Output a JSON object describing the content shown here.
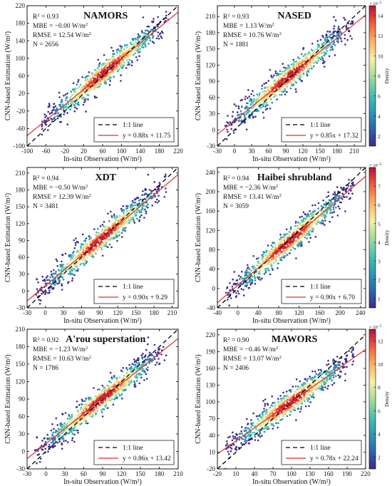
{
  "common": {
    "xlabel": "In-situ Observation (W/m²)",
    "ylabel": "CNN-based Estimation (W/m²)",
    "legend_line1": "1:1 line",
    "colorbar_label": "Density",
    "colorbar_exp": "× 10",
    "colorbar_exp_sup": "−5"
  },
  "chart_data": [
    {
      "type": "scatter",
      "title": "NAMORS",
      "xlim": [
        -100,
        220
      ],
      "ylim": [
        -100,
        220
      ],
      "xticks": [
        "-100",
        "-60",
        "-20",
        "20",
        "60",
        "100",
        "140",
        "180",
        "220"
      ],
      "yticks": [
        "-100",
        "-60",
        "-20",
        "20",
        "60",
        "100",
        "140",
        "180",
        "220"
      ],
      "stats": {
        "r2": "0.93",
        "mbe": "−0.00 W/m",
        "rmse": "12.54 W/m",
        "n": "2656"
      },
      "fit": {
        "slope": 0.88,
        "intercept": 11.75,
        "label": "y = 0.88x + 11.75"
      },
      "point_range": [
        -70,
        200
      ],
      "colorbar": {
        "ticks": [
          "2",
          "4",
          "6",
          "8",
          "10",
          "12",
          "14"
        ],
        "max": 15,
        "min": 1
      }
    },
    {
      "type": "scatter",
      "title": "NASED",
      "xlim": [
        -30,
        230
      ],
      "ylim": [
        -30,
        230
      ],
      "xticks": [
        "-30",
        "0",
        "30",
        "60",
        "90",
        "120",
        "150",
        "180",
        "210"
      ],
      "yticks": [
        "-30",
        "0",
        "30",
        "60",
        "90",
        "120",
        "150",
        "180",
        "210"
      ],
      "stats": {
        "r2": "0.93",
        "mbe": "1.13 W/m",
        "rmse": "10.76 W/m",
        "n": "1881"
      },
      "fit": {
        "slope": 0.85,
        "intercept": 17.32,
        "label": "y = 0.85x + 17.32"
      }
    },
    {
      "type": "scatter",
      "title": "XDT",
      "xlim": [
        -30,
        220
      ],
      "ylim": [
        -30,
        220
      ],
      "xticks": [
        "-30",
        "0",
        "30",
        "60",
        "90",
        "120",
        "150",
        "180",
        "210"
      ],
      "yticks": [
        "-30",
        "0",
        "30",
        "60",
        "90",
        "120",
        "150",
        "180",
        "210"
      ],
      "stats": {
        "r2": "0.94",
        "mbe": "−0.50 W/m",
        "rmse": "12.39 W/m",
        "n": "3481"
      },
      "fit": {
        "slope": 0.9,
        "intercept": 9.29,
        "label": "y = 0.90x + 9.29"
      }
    },
    {
      "type": "scatter",
      "title": "Haibei shrubland",
      "xlim": [
        -40,
        250
      ],
      "ylim": [
        -40,
        250
      ],
      "xticks": [
        "-40",
        "0",
        "40",
        "80",
        "120",
        "160",
        "200",
        "240"
      ],
      "yticks": [
        "-40",
        "0",
        "40",
        "80",
        "120",
        "160",
        "200",
        "240"
      ],
      "stats": {
        "r2": "0.94",
        "mbe": "−2.36 W/m",
        "rmse": "13.41 W/m",
        "n": "3059"
      },
      "fit": {
        "slope": 0.9,
        "intercept": 6.7,
        "label": "y = 0.90x + 6.70"
      },
      "colorbar": {
        "ticks": [
          "1",
          "2",
          "3",
          "4",
          "5",
          "6",
          "7"
        ],
        "max": 8,
        "min": 0.5
      }
    },
    {
      "type": "scatter",
      "title": "A'rou superstation",
      "xlim": [
        -30,
        210
      ],
      "ylim": [
        -30,
        210
      ],
      "xticks": [
        "-30",
        "0",
        "30",
        "60",
        "90",
        "120",
        "150",
        "180",
        "210"
      ],
      "yticks": [
        "-30",
        "0",
        "30",
        "60",
        "90",
        "120",
        "150",
        "180",
        "210"
      ],
      "stats": {
        "r2": "0.92",
        "mbe": "−1.23 W/m",
        "rmse": "10.63 W/m",
        "n": "1786"
      },
      "fit": {
        "slope": 0.86,
        "intercept": 13.42,
        "label": "y = 0.86x + 13.42"
      }
    },
    {
      "type": "scatter",
      "title": "MAWORS",
      "xlim": [
        -20,
        220
      ],
      "ylim": [
        -20,
        230
      ],
      "xticks": [
        "-20",
        "10",
        "40",
        "70",
        "100",
        "130",
        "160",
        "190",
        "220"
      ],
      "yticks": [
        "-20",
        "10",
        "40",
        "70",
        "100",
        "130",
        "160",
        "190",
        "220"
      ],
      "stats": {
        "r2": "0.90",
        "mbe": "−0.46 W/m",
        "rmse": "13.07 W/m",
        "n": "2406"
      },
      "fit": {
        "slope": 0.78,
        "intercept": 22.24,
        "label": "y = 0.78x + 22.24"
      },
      "colorbar": {
        "ticks": [
          "2",
          "4",
          "6",
          "8",
          "10",
          "12"
        ],
        "max": 13,
        "min": 1
      }
    }
  ]
}
